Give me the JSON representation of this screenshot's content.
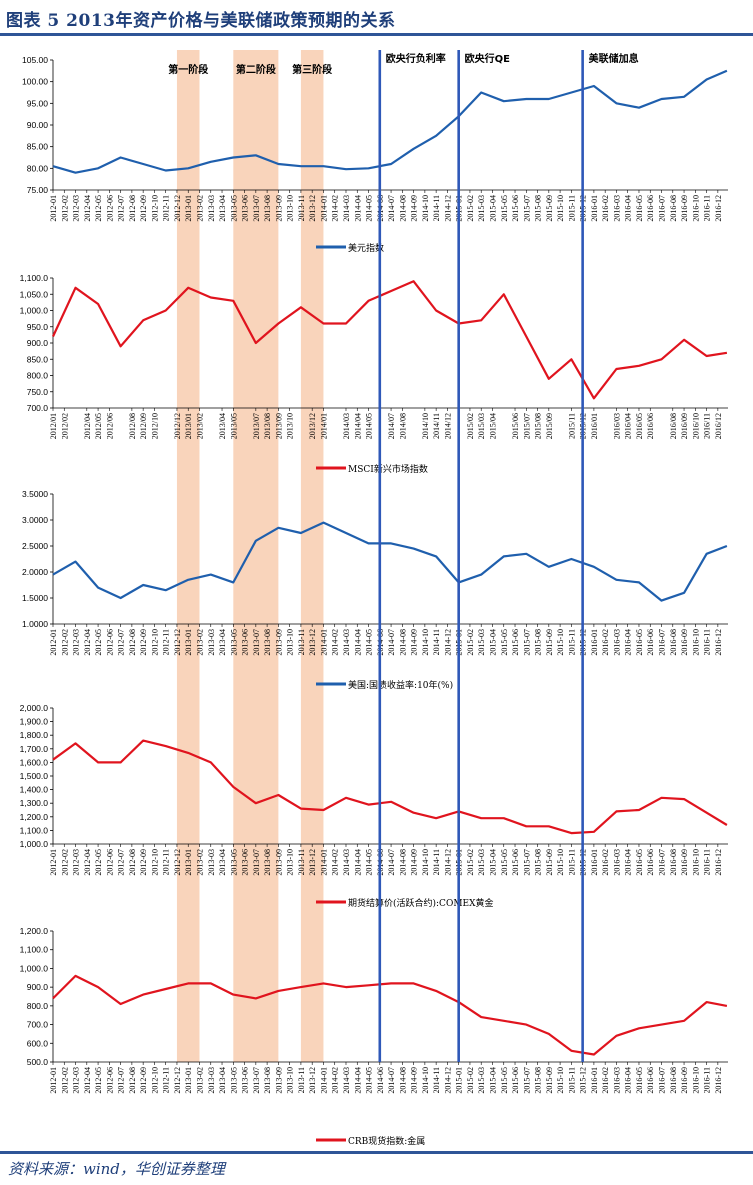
{
  "figure": {
    "title": "图表 5   2013年资产价格与美联储政策预期的关系",
    "source": "资料来源：wind，华创证券整理"
  },
  "colors": {
    "blue": "#1f5fad",
    "red": "#e0141e",
    "band": "#f8cfb4",
    "vline": "#2e58b8",
    "title": "#1f3f7a"
  },
  "event_bands": [
    {
      "label": "第一阶段",
      "start": "2012-12",
      "end": "2013-01"
    },
    {
      "label": "第二阶段",
      "start": "2013-05",
      "end": "2013-08"
    },
    {
      "label": "第三阶段",
      "start": "2013-11",
      "end": "2013-12"
    }
  ],
  "event_lines": [
    {
      "label": "欧央行负利率",
      "date": "2014-06"
    },
    {
      "label": "欧央行QE",
      "date": "2015-01"
    },
    {
      "label": "美联储加息",
      "date": "2015-12"
    }
  ],
  "chart_data": [
    {
      "type": "line",
      "series_name": "美元指数",
      "color": "#1f5fad",
      "ylim": [
        75,
        105
      ],
      "yticks": [
        "75.00",
        "80.00",
        "85.00",
        "90.00",
        "95.00",
        "100.00",
        "105.00"
      ],
      "ytick_values": [
        75,
        80,
        85,
        90,
        95,
        100,
        105
      ],
      "xticks": [
        "2012-01",
        "2012-02",
        "2012-03",
        "2012-04",
        "2012-05",
        "2012-06",
        "2012-07",
        "2012-08",
        "2012-09",
        "2012-10",
        "2012-11",
        "2012-12",
        "2013-01",
        "2013-02",
        "2013-03",
        "2013-04",
        "2013-05",
        "2013-06",
        "2013-07",
        "2013-08",
        "2013-09",
        "2013-10",
        "2013-11",
        "2013-12",
        "2014-01",
        "2014-02",
        "2014-03",
        "2014-04",
        "2014-05",
        "2014-06",
        "2014-07",
        "2014-08",
        "2014-09",
        "2014-10",
        "2014-11",
        "2014-12",
        "2015-01",
        "2015-02",
        "2015-03",
        "2015-04",
        "2015-05",
        "2015-06",
        "2015-07",
        "2015-08",
        "2015-09",
        "2015-10",
        "2015-11",
        "2015-12",
        "2016-01",
        "2016-02",
        "2016-03",
        "2016-04",
        "2016-05",
        "2016-06",
        "2016-07",
        "2016-08",
        "2016-09",
        "2016-10",
        "2016-11",
        "2016-12"
      ],
      "x": [
        "2012-01",
        "2012-03",
        "2012-05",
        "2012-07",
        "2012-09",
        "2012-11",
        "2013-01",
        "2013-03",
        "2013-05",
        "2013-07",
        "2013-09",
        "2013-11",
        "2014-01",
        "2014-03",
        "2014-05",
        "2014-07",
        "2014-09",
        "2014-11",
        "2015-01",
        "2015-03",
        "2015-05",
        "2015-07",
        "2015-09",
        "2015-11",
        "2016-01",
        "2016-03",
        "2016-05",
        "2016-07",
        "2016-09",
        "2016-11",
        "2016-12"
      ],
      "values": [
        80.5,
        79.0,
        80.0,
        82.5,
        81.0,
        79.5,
        80.0,
        81.5,
        82.5,
        83.0,
        81.0,
        80.5,
        80.5,
        79.8,
        80.0,
        81.0,
        84.5,
        87.5,
        92.0,
        97.5,
        95.5,
        96.0,
        96.0,
        97.5,
        99.0,
        95.0,
        94.0,
        96.0,
        96.5,
        100.5,
        102.5
      ]
    },
    {
      "type": "line",
      "series_name": "MSCI新兴市场指数",
      "color": "#e0141e",
      "ylim": [
        700,
        1100
      ],
      "yticks": [
        "700.0",
        "750.0",
        "800.0",
        "850.0",
        "900.0",
        "950.0",
        "1,000.0",
        "1,050.0",
        "1,100.0"
      ],
      "ytick_values": [
        700,
        750,
        800,
        850,
        900,
        950,
        1000,
        1050,
        1100
      ],
      "xticks": [
        "2012/01",
        "2012/02",
        "2012/04",
        "2012/05",
        "2012/06",
        "2012/08",
        "2012/09",
        "2012/10",
        "2012/12",
        "2013/01",
        "2013/02",
        "2013/04",
        "2013/05",
        "2013/07",
        "2013/08",
        "2013/09",
        "2013/10",
        "2013/12",
        "2014/01",
        "2014/03",
        "2014/04",
        "2014/05",
        "2014/07",
        "2014/08",
        "2014/10",
        "2014/11",
        "2014/12",
        "2015/02",
        "2015/03",
        "2015/04",
        "2015/06",
        "2015/07",
        "2015/08",
        "2015/09",
        "2015/11",
        "2015/12",
        "2016/01",
        "2016/03",
        "2016/04",
        "2016/05",
        "2016/06",
        "2016/08",
        "2016/09",
        "2016/10",
        "2016/11",
        "2016/12"
      ],
      "x": [
        "2012-01",
        "2012-03",
        "2012-05",
        "2012-07",
        "2012-09",
        "2012-11",
        "2013-01",
        "2013-03",
        "2013-05",
        "2013-07",
        "2013-09",
        "2013-11",
        "2014-01",
        "2014-03",
        "2014-05",
        "2014-07",
        "2014-09",
        "2014-11",
        "2015-01",
        "2015-03",
        "2015-05",
        "2015-07",
        "2015-09",
        "2015-11",
        "2016-01",
        "2016-03",
        "2016-05",
        "2016-07",
        "2016-09",
        "2016-11",
        "2016-12"
      ],
      "values": [
        920,
        1070,
        1020,
        890,
        970,
        1000,
        1070,
        1040,
        1030,
        900,
        960,
        1010,
        960,
        960,
        1030,
        1060,
        1090,
        1000,
        960,
        970,
        1050,
        920,
        790,
        850,
        730,
        820,
        830,
        850,
        910,
        860,
        870
      ]
    },
    {
      "type": "line",
      "series_name": "美国:国债收益率:10年(%)",
      "color": "#1f5fad",
      "ylim": [
        1.0,
        3.5
      ],
      "yticks": [
        "1.0000",
        "1.5000",
        "2.0000",
        "2.5000",
        "3.0000",
        "3.5000"
      ],
      "ytick_values": [
        1.0,
        1.5,
        2.0,
        2.5,
        3.0,
        3.5
      ],
      "xticks": [
        "2012-01",
        "2012-02",
        "2012-03",
        "2012-04",
        "2012-05",
        "2012-06",
        "2012-07",
        "2012-08",
        "2012-09",
        "2012-10",
        "2012-11",
        "2012-12",
        "2013-01",
        "2013-02",
        "2013-03",
        "2013-04",
        "2013-05",
        "2013-06",
        "2013-07",
        "2013-08",
        "2013-09",
        "2013-10",
        "2013-11",
        "2013-12",
        "2014-01",
        "2014-02",
        "2014-03",
        "2014-04",
        "2014-05",
        "2014-06",
        "2014-07",
        "2014-08",
        "2014-09",
        "2014-10",
        "2014-11",
        "2014-12",
        "2015-01",
        "2015-02",
        "2015-03",
        "2015-04",
        "2015-05",
        "2015-06",
        "2015-07",
        "2015-08",
        "2015-09",
        "2015-10",
        "2015-11",
        "2015-12",
        "2016-01",
        "2016-02",
        "2016-03",
        "2016-04",
        "2016-05",
        "2016-06",
        "2016-07",
        "2016-08",
        "2016-09",
        "2016-10",
        "2016-11",
        "2016-12"
      ],
      "x": [
        "2012-01",
        "2012-03",
        "2012-05",
        "2012-07",
        "2012-09",
        "2012-11",
        "2013-01",
        "2013-03",
        "2013-05",
        "2013-07",
        "2013-09",
        "2013-11",
        "2014-01",
        "2014-03",
        "2014-05",
        "2014-07",
        "2014-09",
        "2014-11",
        "2015-01",
        "2015-03",
        "2015-05",
        "2015-07",
        "2015-09",
        "2015-11",
        "2016-01",
        "2016-03",
        "2016-05",
        "2016-07",
        "2016-09",
        "2016-11",
        "2016-12"
      ],
      "values": [
        1.95,
        2.2,
        1.7,
        1.5,
        1.75,
        1.65,
        1.85,
        1.95,
        1.8,
        2.6,
        2.85,
        2.75,
        2.95,
        2.75,
        2.55,
        2.55,
        2.45,
        2.3,
        1.8,
        1.95,
        2.3,
        2.35,
        2.1,
        2.25,
        2.1,
        1.85,
        1.8,
        1.45,
        1.6,
        2.35,
        2.5
      ]
    },
    {
      "type": "line",
      "series_name": "期货结算价(活跃合约):COMEX黄金",
      "color": "#e0141e",
      "ylim": [
        1000,
        2000
      ],
      "yticks": [
        "1,000.0",
        "1,100.0",
        "1,200.0",
        "1,300.0",
        "1,400.0",
        "1,500.0",
        "1,600.0",
        "1,700.0",
        "1,800.0",
        "1,900.0",
        "2,000.0"
      ],
      "ytick_values": [
        1000,
        1100,
        1200,
        1300,
        1400,
        1500,
        1600,
        1700,
        1800,
        1900,
        2000
      ],
      "xticks": [
        "2012-01",
        "2012-02",
        "2012-03",
        "2012-04",
        "2012-05",
        "2012-06",
        "2012-07",
        "2012-08",
        "2012-09",
        "2012-10",
        "2012-11",
        "2012-12",
        "2013-01",
        "2013-02",
        "2013-03",
        "2013-04",
        "2013-05",
        "2013-06",
        "2013-07",
        "2013-08",
        "2013-09",
        "2013-10",
        "2013-11",
        "2013-12",
        "2014-01",
        "2014-02",
        "2014-03",
        "2014-04",
        "2014-05",
        "2014-06",
        "2014-07",
        "2014-08",
        "2014-09",
        "2014-10",
        "2014-11",
        "2014-12",
        "2015-01",
        "2015-02",
        "2015-03",
        "2015-04",
        "2015-05",
        "2015-06",
        "2015-07",
        "2015-08",
        "2015-09",
        "2015-10",
        "2015-11",
        "2015-12",
        "2016-01",
        "2016-02",
        "2016-03",
        "2016-04",
        "2016-05",
        "2016-06",
        "2016-07",
        "2016-08",
        "2016-09",
        "2016-10",
        "2016-11",
        "2016-12"
      ],
      "x": [
        "2012-01",
        "2012-03",
        "2012-05",
        "2012-07",
        "2012-09",
        "2012-11",
        "2013-01",
        "2013-03",
        "2013-05",
        "2013-07",
        "2013-09",
        "2013-11",
        "2014-01",
        "2014-03",
        "2014-05",
        "2014-07",
        "2014-09",
        "2014-11",
        "2015-01",
        "2015-03",
        "2015-05",
        "2015-07",
        "2015-09",
        "2015-11",
        "2016-01",
        "2016-03",
        "2016-05",
        "2016-07",
        "2016-09",
        "2016-11",
        "2016-12"
      ],
      "values": [
        1620,
        1740,
        1600,
        1600,
        1760,
        1720,
        1670,
        1600,
        1420,
        1300,
        1360,
        1260,
        1250,
        1340,
        1290,
        1310,
        1230,
        1190,
        1240,
        1190,
        1190,
        1130,
        1130,
        1080,
        1090,
        1240,
        1250,
        1340,
        1330,
        1230,
        1140
      ]
    },
    {
      "type": "line",
      "series_name": "CRB现货指数:金属",
      "color": "#e0141e",
      "ylim": [
        500,
        1200
      ],
      "yticks": [
        "500.0",
        "600.0",
        "700.0",
        "800.0",
        "900.0",
        "1,000.0",
        "1,100.0",
        "1,200.0"
      ],
      "ytick_values": [
        500,
        600,
        700,
        800,
        900,
        1000,
        1100,
        1200
      ],
      "xticks": [
        "2012-01",
        "2012-02",
        "2012-03",
        "2012-04",
        "2012-05",
        "2012-06",
        "2012-07",
        "2012-08",
        "2012-09",
        "2012-10",
        "2012-11",
        "2012-12",
        "2013-01",
        "2013-02",
        "2013-03",
        "2013-04",
        "2013-05",
        "2013-06",
        "2013-07",
        "2013-08",
        "2013-09",
        "2013-10",
        "2013-11",
        "2013-12",
        "2014-01",
        "2014-02",
        "2014-03",
        "2014-04",
        "2014-05",
        "2014-06",
        "2014-07",
        "2014-08",
        "2014-09",
        "2014-10",
        "2014-11",
        "2014-12",
        "2015-01",
        "2015-02",
        "2015-03",
        "2015-04",
        "2015-05",
        "2015-06",
        "2015-07",
        "2015-08",
        "2015-09",
        "2015-10",
        "2015-11",
        "2015-12",
        "2016-01",
        "2016-02",
        "2016-03",
        "2016-04",
        "2016-05",
        "2016-06",
        "2016-07",
        "2016-08",
        "2016-09",
        "2016-10",
        "2016-11",
        "2016-12"
      ],
      "x": [
        "2012-01",
        "2012-03",
        "2012-05",
        "2012-07",
        "2012-09",
        "2012-11",
        "2013-01",
        "2013-03",
        "2013-05",
        "2013-07",
        "2013-09",
        "2013-11",
        "2014-01",
        "2014-03",
        "2014-05",
        "2014-07",
        "2014-09",
        "2014-11",
        "2015-01",
        "2015-03",
        "2015-05",
        "2015-07",
        "2015-09",
        "2015-11",
        "2016-01",
        "2016-03",
        "2016-05",
        "2016-07",
        "2016-09",
        "2016-11",
        "2016-12"
      ],
      "values": [
        840,
        960,
        900,
        810,
        860,
        890,
        920,
        920,
        860,
        840,
        880,
        900,
        920,
        900,
        910,
        920,
        920,
        880,
        820,
        740,
        720,
        700,
        650,
        560,
        540,
        640,
        680,
        700,
        720,
        820,
        800
      ]
    }
  ]
}
